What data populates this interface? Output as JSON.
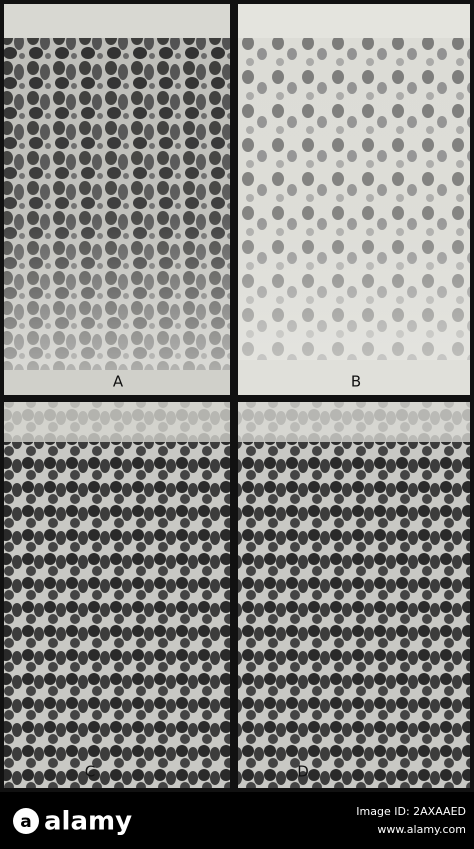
{
  "panels": [
    {
      "label": "A"
    },
    {
      "label": "B"
    },
    {
      "label": "C"
    },
    {
      "label": "D"
    }
  ],
  "footer": {
    "logo": "alamy",
    "image_id": "Image ID: 2AXAAED",
    "url": "www.alamy.com"
  }
}
